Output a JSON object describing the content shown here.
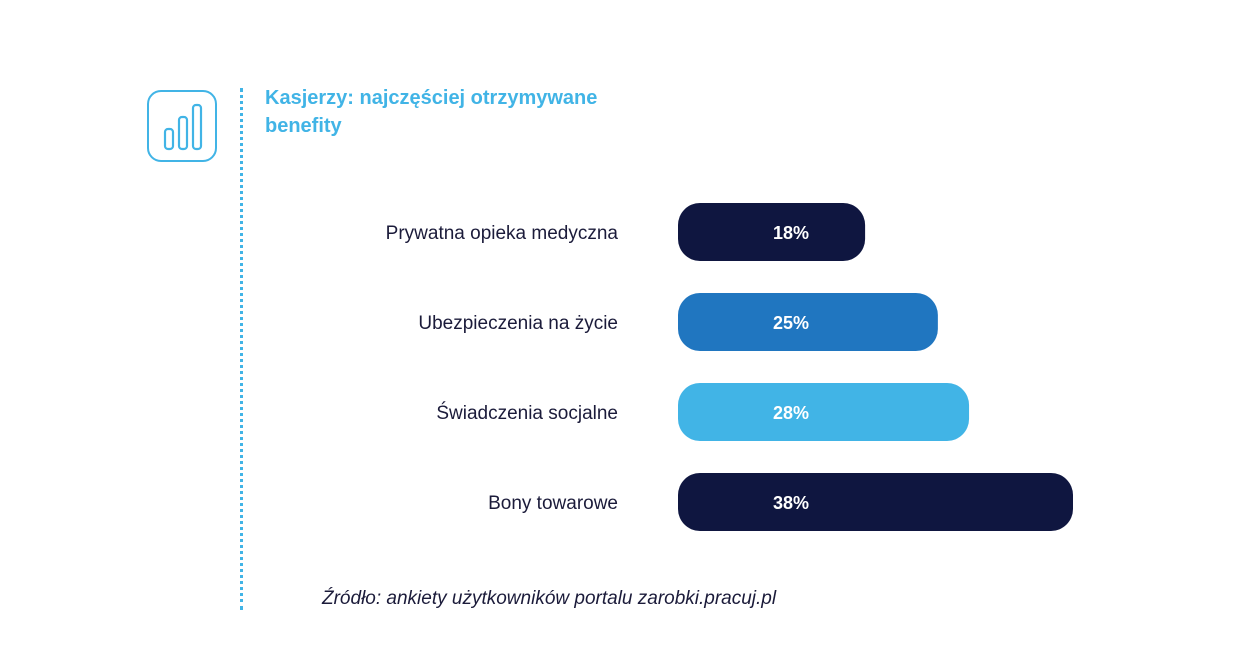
{
  "colors": {
    "accent": "#41b4e6",
    "bar_colors": [
      "#0f1640",
      "#2076c0",
      "#41b4e6",
      "#0f1640"
    ]
  },
  "header": {
    "icon": "bar-chart-icon"
  },
  "chart_data": {
    "type": "bar",
    "orientation": "horizontal",
    "title": "Kasjerzy: najczęściej otrzymywane benefity",
    "categories": [
      "Prywatna opieka medyczna",
      "Ubezpieczenia na życie",
      "Świadczenia socjalne",
      "Bony towarowe"
    ],
    "values": [
      18,
      25,
      28,
      38
    ],
    "value_labels": [
      "18%",
      "25%",
      "28%",
      "38%"
    ],
    "unit": "%",
    "xlim": [
      0,
      38
    ],
    "grid": false,
    "legend": "none"
  },
  "footer": {
    "source": "Źródło: ankiety użytkowników portalu zarobki.pracuj.pl"
  }
}
